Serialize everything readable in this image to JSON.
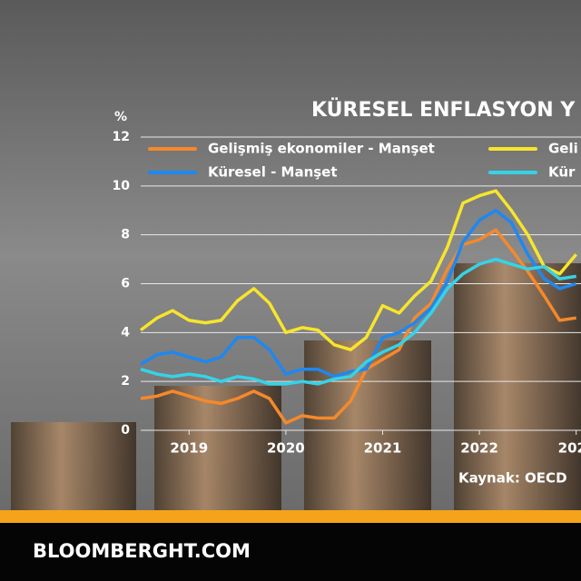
{
  "chart_data": {
    "type": "line",
    "title": "KÜRESEL ENFLASYON Y",
    "y_unit": "%",
    "source": "Kaynak: OECD",
    "x": [
      2018.5,
      2018.67,
      2018.83,
      2019,
      2019.17,
      2019.33,
      2019.5,
      2019.67,
      2019.83,
      2020,
      2020.17,
      2020.33,
      2020.5,
      2020.67,
      2020.83,
      2021,
      2021.17,
      2021.33,
      2021.5,
      2021.67,
      2021.83,
      2022,
      2022.17,
      2022.33,
      2022.5,
      2022.67,
      2022.83,
      2023
    ],
    "series": [
      {
        "name": "Gelişmiş ekonomiler - Manşet",
        "color": "#f5892b",
        "values": [
          1.3,
          1.4,
          1.6,
          1.4,
          1.2,
          1.1,
          1.3,
          1.6,
          1.3,
          0.3,
          0.6,
          0.5,
          0.5,
          1.2,
          2.5,
          2.9,
          3.3,
          4.6,
          5.2,
          6.6,
          7.6,
          7.8,
          8.2,
          7.4,
          6.5,
          5.5,
          4.5,
          4.6
        ]
      },
      {
        "name": "Küresel - Manşet",
        "color": "#1e88f0",
        "values": [
          2.7,
          3.1,
          3.2,
          3.0,
          2.8,
          3.0,
          3.8,
          3.8,
          3.3,
          2.3,
          2.5,
          2.5,
          2.2,
          2.4,
          2.5,
          3.8,
          4.0,
          4.4,
          5.0,
          6.1,
          7.7,
          8.6,
          9.0,
          8.5,
          7.2,
          6.2,
          5.8,
          6.0
        ]
      },
      {
        "name": "Geli",
        "color": "#f7e52c",
        "values": [
          4.1,
          4.6,
          4.9,
          4.5,
          4.4,
          4.5,
          5.3,
          5.8,
          5.2,
          4.0,
          4.2,
          4.1,
          3.5,
          3.3,
          3.8,
          5.1,
          4.8,
          5.5,
          6.1,
          7.5,
          9.3,
          9.6,
          9.8,
          9.0,
          8.0,
          6.7,
          6.4,
          7.2
        ]
      },
      {
        "name": "Kür",
        "color": "#35d3e8",
        "values": [
          2.5,
          2.3,
          2.2,
          2.3,
          2.2,
          2.0,
          2.2,
          2.1,
          1.9,
          1.9,
          2.0,
          1.9,
          2.1,
          2.2,
          2.8,
          3.2,
          3.5,
          4.0,
          4.8,
          5.8,
          6.4,
          6.8,
          7.0,
          6.8,
          6.6,
          6.7,
          6.2,
          6.3
        ]
      }
    ],
    "xlim": [
      2018.5,
      2023.05
    ],
    "ylim": [
      0,
      12
    ],
    "xticks": [
      2019,
      2020,
      2021,
      2022,
      {
        "value": 2023,
        "label": "202"
      }
    ],
    "yticks": [
      0,
      2,
      4,
      6,
      8,
      10,
      12
    ],
    "grid": true
  },
  "footer": {
    "site": "BLOOMBERGHT.COM"
  }
}
